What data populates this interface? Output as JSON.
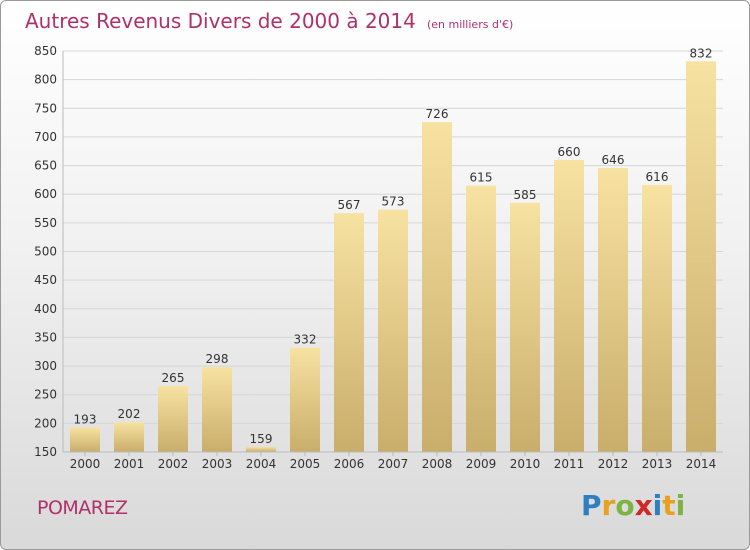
{
  "title": "Autres Revenus Divers de 2000 à 2014",
  "subtitle": "(en milliers d'€)",
  "place": "POMAREZ",
  "logo": {
    "letters": [
      {
        "ch": "P",
        "color": "#2e7fc1"
      },
      {
        "ch": "r",
        "color": "#e8a020"
      },
      {
        "ch": "o",
        "color": "#7cb342"
      },
      {
        "ch": "x",
        "color": "#d02828"
      },
      {
        "ch": "i",
        "color": "#2e7fc1"
      },
      {
        "ch": "t",
        "color": "#e8a020"
      },
      {
        "ch": "i",
        "color": "#7cb342"
      }
    ]
  },
  "colors": {
    "title": "#b0306a",
    "bar_top": "#f7e2a2",
    "bar_bottom": "#c9ad6b",
    "grid": "#d6d6d6",
    "axis_text": "#333333"
  },
  "chart_data": {
    "type": "bar",
    "categories": [
      "2000",
      "2001",
      "2002",
      "2003",
      "2004",
      "2005",
      "2006",
      "2007",
      "2008",
      "2009",
      "2010",
      "2011",
      "2012",
      "2013",
      "2014"
    ],
    "values": [
      193,
      202,
      265,
      298,
      159,
      332,
      567,
      573,
      726,
      615,
      585,
      660,
      646,
      616,
      832
    ],
    "ylim": [
      150,
      850
    ],
    "yticks": [
      150,
      200,
      250,
      300,
      350,
      400,
      450,
      500,
      550,
      600,
      650,
      700,
      750,
      800,
      850
    ],
    "grid": true,
    "legend": "none"
  }
}
